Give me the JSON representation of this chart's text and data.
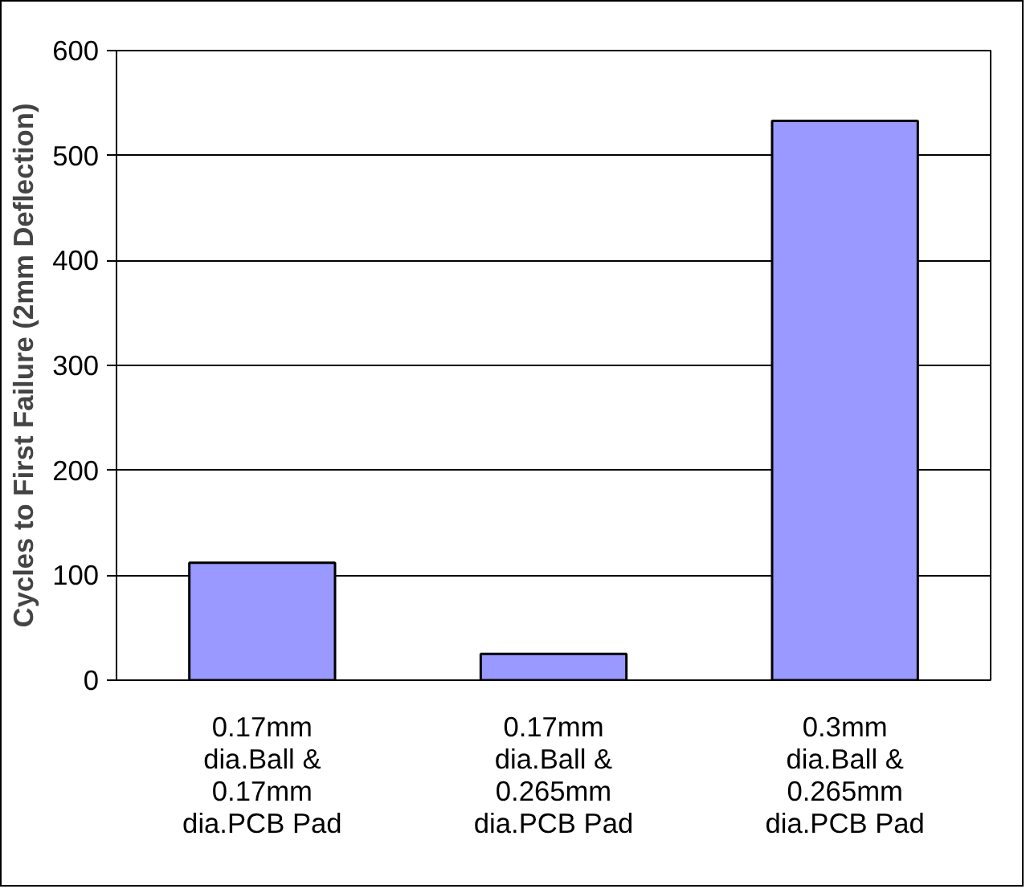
{
  "chart_data": {
    "type": "bar",
    "ylabel": "Cycles to First Failure (2mm Deflection)",
    "categories": [
      "0.17mm dia.Ball & 0.17mm dia.PCB Pad",
      "0.17mm dia.Ball & 0.265mm dia.PCB Pad",
      "0.3mm dia.Ball & 0.265mm dia.PCB Pad"
    ],
    "values": [
      112,
      25,
      533
    ],
    "color": "#9999ff",
    "ylim": [
      0,
      600
    ],
    "yticks": [
      0,
      100,
      200,
      300,
      400,
      500,
      600
    ],
    "grid": "y"
  }
}
